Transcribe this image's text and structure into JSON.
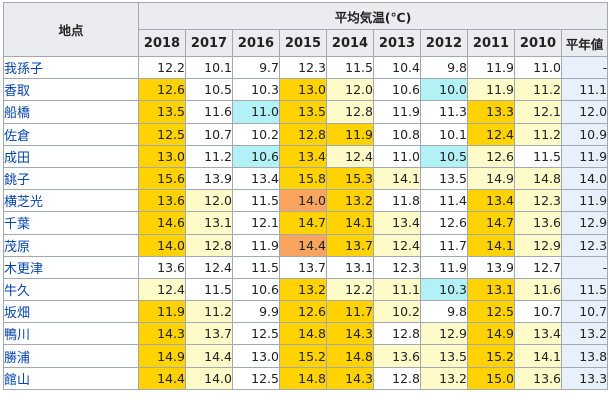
{
  "table": {
    "station_header": "地点",
    "group_header": "平均気温(℃)",
    "years": [
      "2018",
      "2017",
      "2016",
      "2015",
      "2014",
      "2013",
      "2012",
      "2011",
      "2010"
    ],
    "normal_header": "平年値",
    "colors": {
      "white": "#ffffff",
      "light_yellow": "#fffbc8",
      "yellow": "#ffd200",
      "cyan": "#b2f2f6",
      "orange": "#f9a45f",
      "normal_bg": "#e8f1fb"
    },
    "rows": [
      {
        "station": "我孫子",
        "values": [
          "12.2",
          "10.1",
          "9.7",
          "12.3",
          "11.5",
          "10.4",
          "9.8",
          "11.9",
          "11.0"
        ],
        "colors": [
          "w",
          "w",
          "w",
          "w",
          "w",
          "w",
          "w",
          "w",
          "w"
        ],
        "normal": "-"
      },
      {
        "station": "香取",
        "values": [
          "12.6",
          "10.5",
          "10.3",
          "13.0",
          "12.0",
          "10.6",
          "10.0",
          "11.9",
          "11.2"
        ],
        "colors": [
          "y",
          "w",
          "w",
          "y",
          "ly",
          "w",
          "c",
          "ly",
          "ly"
        ],
        "normal": "11.1"
      },
      {
        "station": "船橋",
        "values": [
          "13.5",
          "11.6",
          "11.0",
          "13.5",
          "12.8",
          "11.9",
          "11.3",
          "13.3",
          "12.1"
        ],
        "colors": [
          "y",
          "w",
          "c",
          "y",
          "ly",
          "w",
          "w",
          "y",
          "ly"
        ],
        "normal": "12.0"
      },
      {
        "station": "佐倉",
        "values": [
          "12.5",
          "10.7",
          "10.2",
          "12.8",
          "11.9",
          "10.8",
          "10.1",
          "12.4",
          "11.2"
        ],
        "colors": [
          "y",
          "w",
          "w",
          "y",
          "y",
          "w",
          "w",
          "y",
          "ly"
        ],
        "normal": "10.9"
      },
      {
        "station": "成田",
        "values": [
          "13.0",
          "11.2",
          "10.6",
          "13.4",
          "12.4",
          "11.0",
          "10.5",
          "12.6",
          "11.5"
        ],
        "colors": [
          "y",
          "w",
          "c",
          "y",
          "ly",
          "w",
          "c",
          "ly",
          "w"
        ],
        "normal": "11.9"
      },
      {
        "station": "銚子",
        "values": [
          "15.6",
          "13.9",
          "13.4",
          "15.8",
          "15.3",
          "14.1",
          "13.5",
          "14.9",
          "14.8"
        ],
        "colors": [
          "y",
          "w",
          "w",
          "y",
          "y",
          "ly",
          "w",
          "ly",
          "ly"
        ],
        "normal": "14.0"
      },
      {
        "station": "横芝光",
        "values": [
          "13.6",
          "12.0",
          "11.5",
          "14.0",
          "13.2",
          "11.8",
          "11.4",
          "13.4",
          "12.3"
        ],
        "colors": [
          "y",
          "ly",
          "w",
          "o",
          "y",
          "w",
          "w",
          "y",
          "ly"
        ],
        "normal": "11.9"
      },
      {
        "station": "千葉",
        "values": [
          "14.6",
          "13.1",
          "12.1",
          "14.7",
          "14.1",
          "13.4",
          "12.6",
          "14.7",
          "13.6"
        ],
        "colors": [
          "y",
          "ly",
          "w",
          "y",
          "y",
          "ly",
          "w",
          "y",
          "ly"
        ],
        "normal": "12.9"
      },
      {
        "station": "茂原",
        "values": [
          "14.0",
          "12.8",
          "11.9",
          "14.4",
          "13.7",
          "12.4",
          "11.7",
          "14.1",
          "12.9"
        ],
        "colors": [
          "y",
          "ly",
          "w",
          "o",
          "y",
          "ly",
          "w",
          "y",
          "ly"
        ],
        "normal": "12.3"
      },
      {
        "station": "木更津",
        "values": [
          "13.6",
          "12.4",
          "11.5",
          "13.7",
          "13.1",
          "12.3",
          "11.9",
          "13.9",
          "12.7"
        ],
        "colors": [
          "w",
          "w",
          "w",
          "w",
          "w",
          "w",
          "w",
          "w",
          "w"
        ],
        "normal": "-"
      },
      {
        "station": "牛久",
        "values": [
          "12.4",
          "11.5",
          "10.6",
          "13.2",
          "12.2",
          "11.1",
          "10.3",
          "13.1",
          "11.6"
        ],
        "colors": [
          "ly",
          "w",
          "w",
          "y",
          "ly",
          "ly",
          "c",
          "y",
          "ly"
        ],
        "normal": "11.5"
      },
      {
        "station": "坂畑",
        "values": [
          "11.9",
          "11.2",
          "9.9",
          "12.6",
          "11.7",
          "10.2",
          "9.8",
          "12.5",
          "10.7"
        ],
        "colors": [
          "y",
          "ly",
          "w",
          "y",
          "y",
          "ly",
          "w",
          "y",
          "w"
        ],
        "normal": "10.7"
      },
      {
        "station": "鴨川",
        "values": [
          "14.3",
          "13.7",
          "12.5",
          "14.8",
          "14.3",
          "12.8",
          "12.9",
          "14.9",
          "13.4"
        ],
        "colors": [
          "y",
          "ly",
          "w",
          "y",
          "y",
          "w",
          "ly",
          "y",
          "ly"
        ],
        "normal": "13.2"
      },
      {
        "station": "勝浦",
        "values": [
          "14.9",
          "14.4",
          "13.0",
          "15.2",
          "14.8",
          "13.6",
          "13.5",
          "15.2",
          "14.1"
        ],
        "colors": [
          "y",
          "ly",
          "w",
          "y",
          "y",
          "ly",
          "ly",
          "y",
          "ly"
        ],
        "normal": "13.8"
      },
      {
        "station": "館山",
        "values": [
          "14.4",
          "14.0",
          "12.5",
          "14.8",
          "14.3",
          "12.8",
          "13.2",
          "15.0",
          "13.6"
        ],
        "colors": [
          "y",
          "ly",
          "w",
          "y",
          "y",
          "w",
          "ly",
          "y",
          "ly"
        ],
        "normal": "13.3"
      }
    ]
  }
}
